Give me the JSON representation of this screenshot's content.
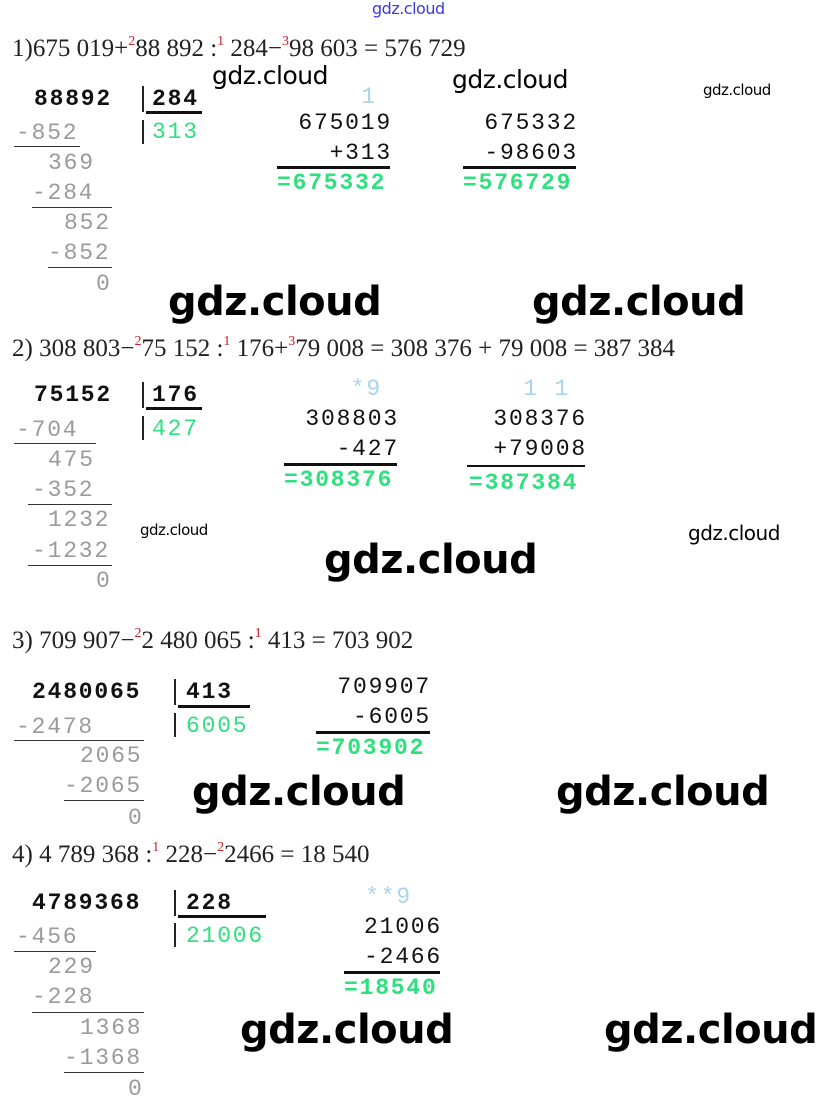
{
  "watermark": "gdz.cloud",
  "colors": {
    "answer": "#2ee07e",
    "superscript": "#d02020",
    "hint": "#a9d4ee",
    "top_watermark": "#3a3ae0"
  },
  "problems": [
    {
      "expression": [
        "1)675 019+",
        "2",
        "88 892 :",
        "1",
        " 284−",
        "3",
        "98 603 = 576 729"
      ],
      "division": {
        "dividend": "88892",
        "divisor": "284",
        "quotient": "313",
        "steps": [
          "-852",
          "369",
          "-284",
          "852",
          "-852",
          "0"
        ]
      },
      "columns": [
        {
          "hint": "1",
          "top": "675019",
          "second": "+313",
          "result": "=675332"
        },
        {
          "hint": "",
          "top": "675332",
          "second": "-98603",
          "result": "=576729"
        }
      ]
    },
    {
      "expression": [
        "2) 308 803−",
        "2",
        "75 152 :",
        "1",
        " 176+",
        "3",
        "79 008 = 308 376 + 79 008 = 387 384"
      ],
      "division": {
        "dividend": "75152",
        "divisor": "176",
        "quotient": "427",
        "steps": [
          "-704",
          "475",
          "-352",
          "1232",
          "-1232",
          "0"
        ]
      },
      "columns": [
        {
          "hint": "*9",
          "top": "308803",
          "second": "-427",
          "result": "=308376"
        },
        {
          "hint": "1 1",
          "top": "308376",
          "second": "+79008",
          "result": "=387384"
        }
      ]
    },
    {
      "expression": [
        "3) 709 907−",
        "2",
        "2 480 065 :",
        "1",
        " 413 = 703 902"
      ],
      "division": {
        "dividend": "2480065",
        "divisor": "413",
        "quotient": "6005",
        "steps": [
          "-2478",
          "2065",
          "-2065",
          "0"
        ]
      },
      "columns": [
        {
          "top": "709907",
          "second": "-6005",
          "result": "=703902"
        }
      ]
    },
    {
      "expression": [
        "4) 4 789 368 :",
        "1",
        " 228−",
        "2",
        "2466 = 18 540"
      ],
      "division": {
        "dividend": "4789368",
        "divisor": "228",
        "quotient": "21006",
        "steps": [
          "-456",
          "229",
          "-228",
          "1368",
          "-1368",
          "0"
        ]
      },
      "columns": [
        {
          "hint": "**9",
          "top": "21006",
          "second": "-2466",
          "result": "=18540"
        }
      ]
    }
  ]
}
